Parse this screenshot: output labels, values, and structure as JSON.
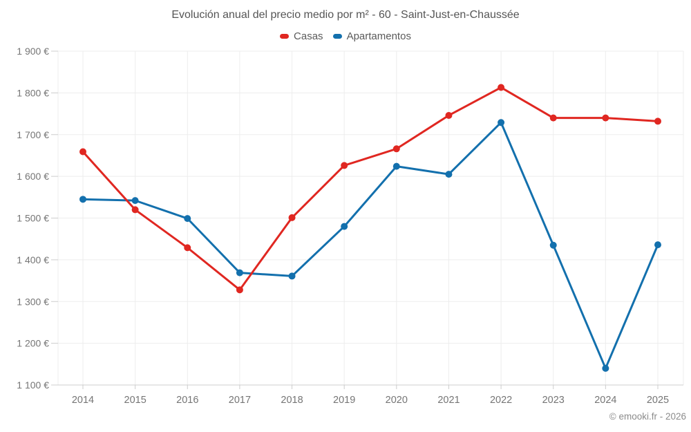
{
  "chart_data": {
    "type": "line",
    "title": "Evolución anual del precio medio por m² - 60 - Saint-Just-en-Chaussée",
    "categories": [
      "2014",
      "2015",
      "2016",
      "2017",
      "2018",
      "2019",
      "2020",
      "2021",
      "2022",
      "2023",
      "2024",
      "2025"
    ],
    "series": [
      {
        "name": "Casas",
        "color": "#e02721",
        "values": [
          1659,
          1520,
          1429,
          1328,
          1501,
          1626,
          1666,
          1746,
          1813,
          1740,
          1740,
          1732
        ]
      },
      {
        "name": "Apartamentos",
        "color": "#1370ad",
        "values": [
          1545,
          1542,
          1499,
          1369,
          1361,
          1480,
          1624,
          1605,
          1729,
          1435,
          1140,
          1436
        ]
      }
    ],
    "ylim": [
      1100,
      1900
    ],
    "y_ticks": [
      {
        "value": 1900,
        "label": "1 900 €"
      },
      {
        "value": 1800,
        "label": "1 800 €"
      },
      {
        "value": 1700,
        "label": "1 700 €"
      },
      {
        "value": 1600,
        "label": "1 600 €"
      },
      {
        "value": 1500,
        "label": "1 500 €"
      },
      {
        "value": 1400,
        "label": "1 400 €"
      },
      {
        "value": 1300,
        "label": "1 300 €"
      },
      {
        "value": 1200,
        "label": "1 200 €"
      },
      {
        "value": 1100,
        "label": "1 100 €"
      }
    ],
    "xlabel": "",
    "ylabel": "",
    "grid": true,
    "legend_position": "top",
    "footer": "© emooki.fr - 2026",
    "colors": {
      "grid": "#ededed",
      "axis": "#cccccc",
      "tick_label": "#757575",
      "background": "#ffffff"
    }
  }
}
